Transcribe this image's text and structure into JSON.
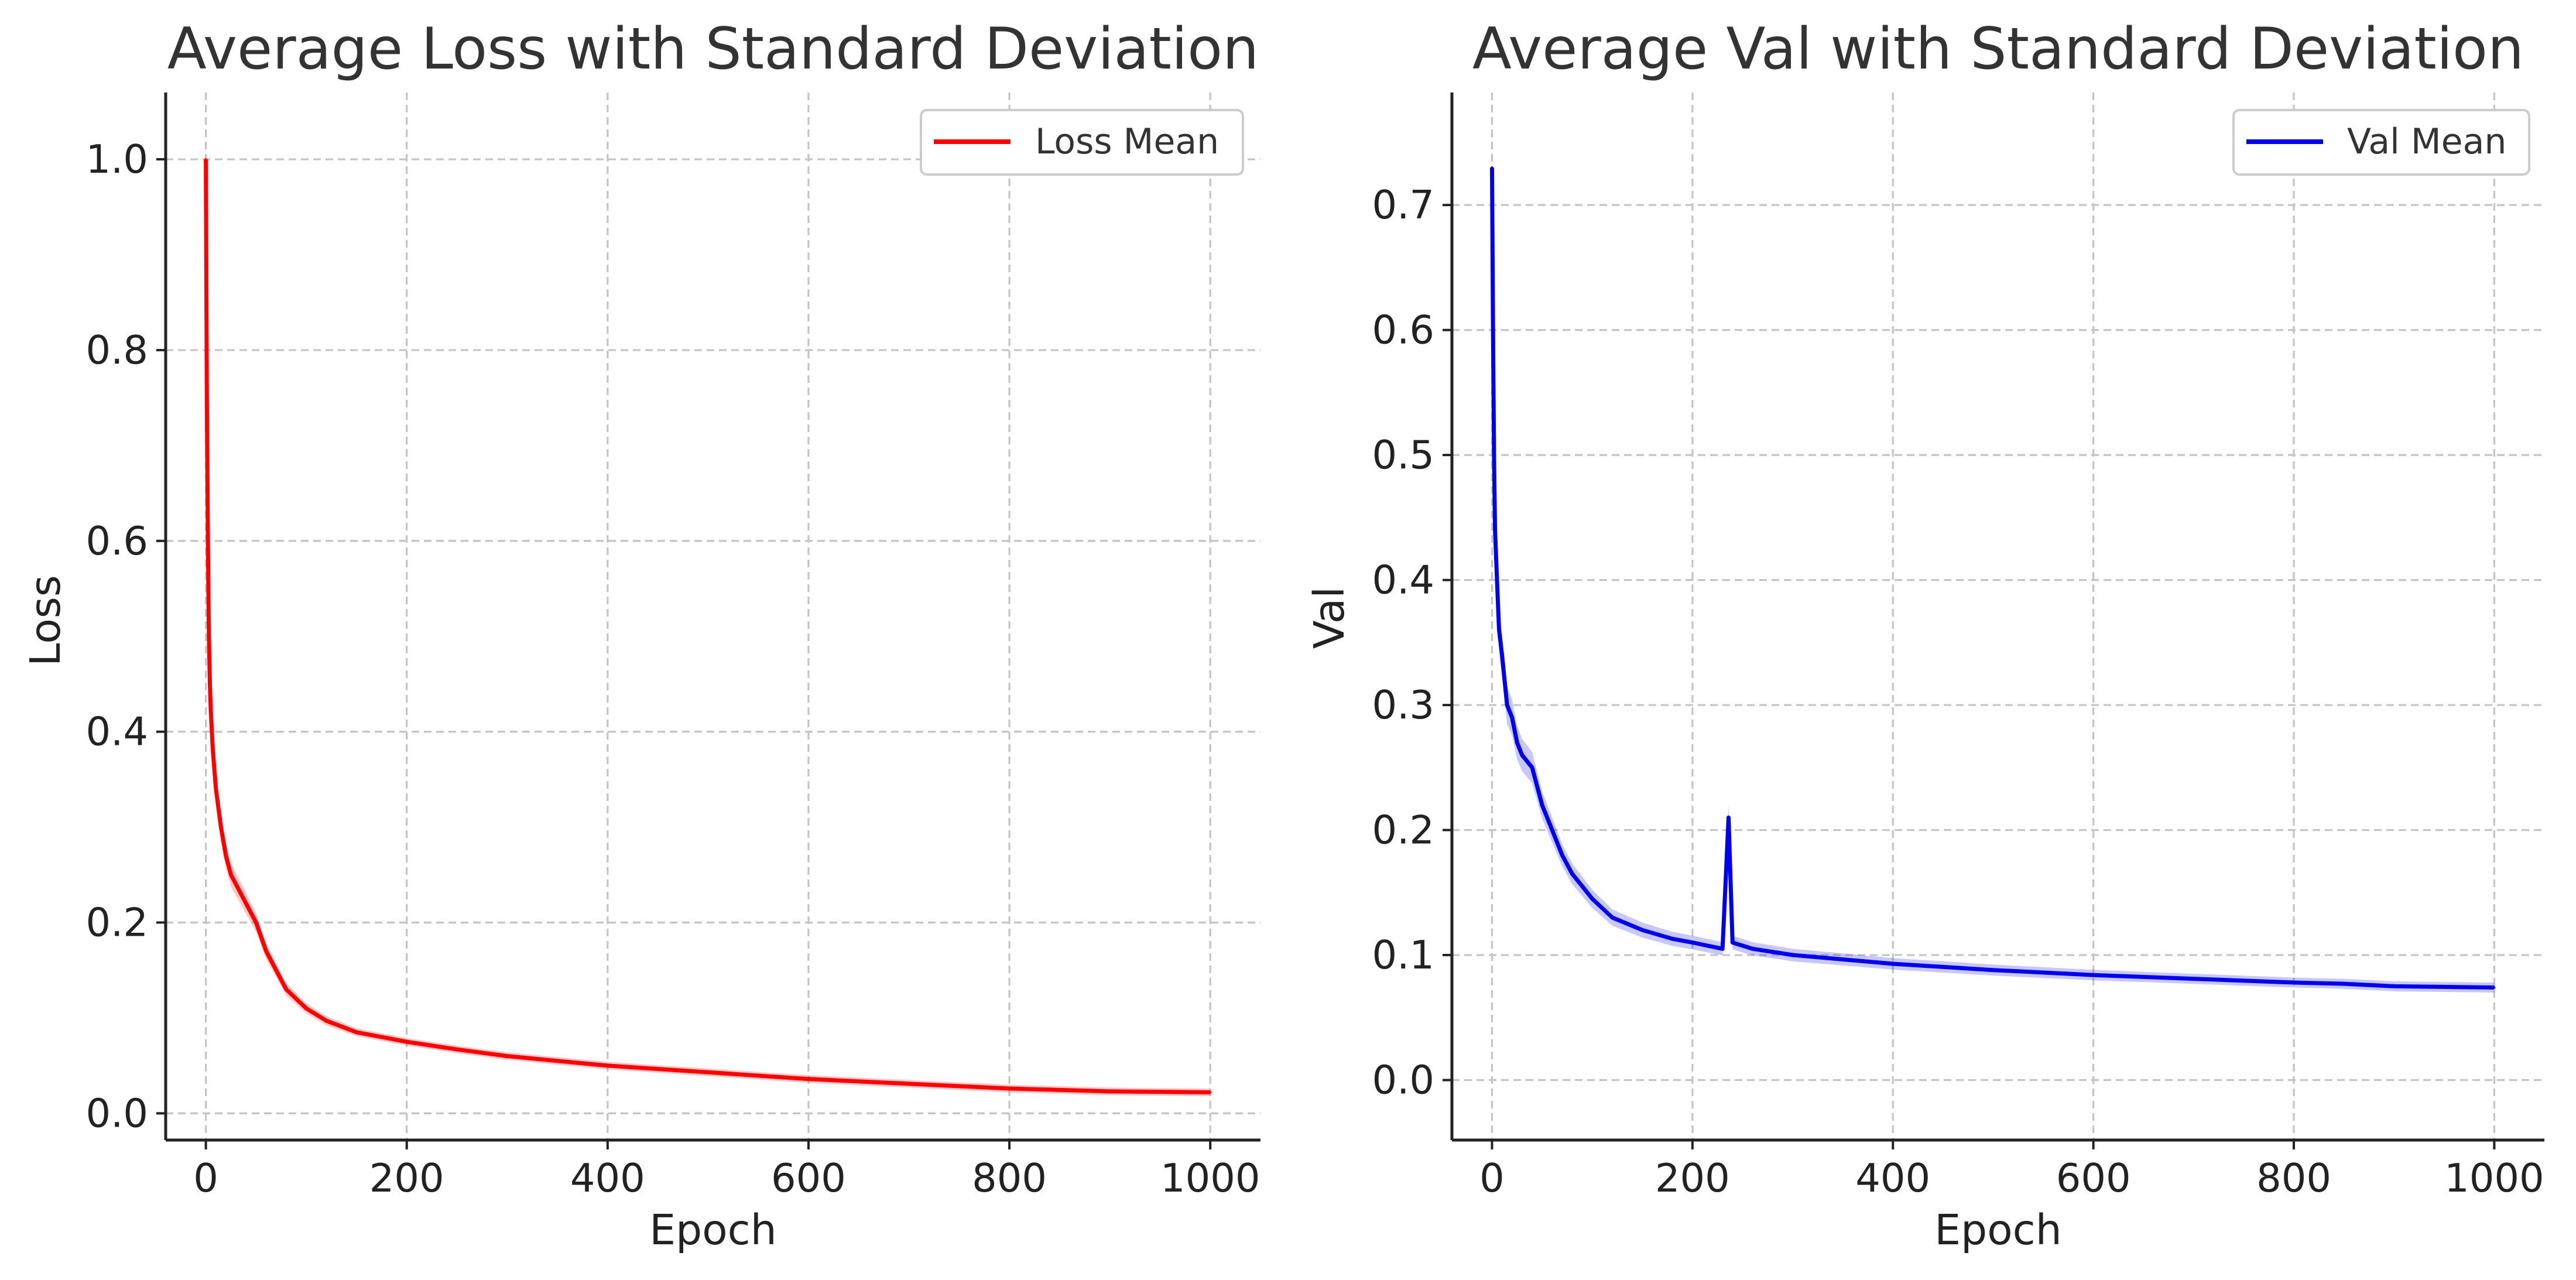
{
  "colors": {
    "loss": "#ff0000",
    "val": "#0000ee"
  },
  "chart_data": [
    {
      "type": "line",
      "title": "Average Loss with Standard Deviation",
      "xlabel": "Epoch",
      "ylabel": "Loss",
      "xlim": [
        -40,
        1050
      ],
      "ylim": [
        -0.028,
        1.07
      ],
      "xticks": [
        "0",
        "200",
        "400",
        "600",
        "800",
        "1000"
      ],
      "yticks": [
        "0.0",
        "0.2",
        "0.4",
        "0.6",
        "0.8",
        "1.0"
      ],
      "grid": true,
      "legend_position": "upper-right",
      "series": [
        {
          "name": "Loss Mean",
          "band": "standard deviation",
          "x": [
            0,
            1,
            2,
            3,
            4,
            5,
            7,
            10,
            15,
            20,
            25,
            30,
            40,
            50,
            60,
            70,
            80,
            90,
            100,
            120,
            150,
            200,
            250,
            300,
            350,
            400,
            500,
            600,
            700,
            800,
            900,
            1000
          ],
          "y": [
            1.0,
            0.75,
            0.6,
            0.5,
            0.45,
            0.42,
            0.38,
            0.34,
            0.3,
            0.27,
            0.25,
            0.24,
            0.22,
            0.2,
            0.17,
            0.15,
            0.13,
            0.12,
            0.11,
            0.097,
            0.085,
            0.075,
            0.067,
            0.06,
            0.055,
            0.05,
            0.043,
            0.036,
            0.031,
            0.026,
            0.023,
            0.022
          ]
        }
      ]
    },
    {
      "type": "line",
      "title": "Average Val with Standard Deviation",
      "xlabel": "Epoch",
      "ylabel": "Val",
      "xlim": [
        -40,
        1050
      ],
      "ylim": [
        -0.048,
        0.79
      ],
      "xticks": [
        "0",
        "200",
        "400",
        "600",
        "800",
        "1000"
      ],
      "yticks": [
        "0.0",
        "0.1",
        "0.2",
        "0.3",
        "0.4",
        "0.5",
        "0.6",
        "0.7"
      ],
      "grid": true,
      "legend_position": "upper-right",
      "series": [
        {
          "name": "Val Mean",
          "band": "standard deviation",
          "x": [
            0,
            1,
            2,
            3,
            4,
            5,
            7,
            10,
            15,
            20,
            25,
            30,
            40,
            50,
            60,
            70,
            80,
            90,
            100,
            120,
            150,
            180,
            200,
            230,
            236,
            240,
            260,
            300,
            400,
            500,
            600,
            700,
            800,
            850,
            900,
            1000
          ],
          "y": [
            0.73,
            0.6,
            0.5,
            0.44,
            0.42,
            0.4,
            0.36,
            0.34,
            0.3,
            0.29,
            0.27,
            0.26,
            0.25,
            0.22,
            0.2,
            0.18,
            0.165,
            0.155,
            0.145,
            0.13,
            0.12,
            0.113,
            0.11,
            0.105,
            0.21,
            0.11,
            0.105,
            0.1,
            0.093,
            0.088,
            0.084,
            0.081,
            0.078,
            0.077,
            0.075,
            0.074
          ]
        }
      ]
    }
  ]
}
